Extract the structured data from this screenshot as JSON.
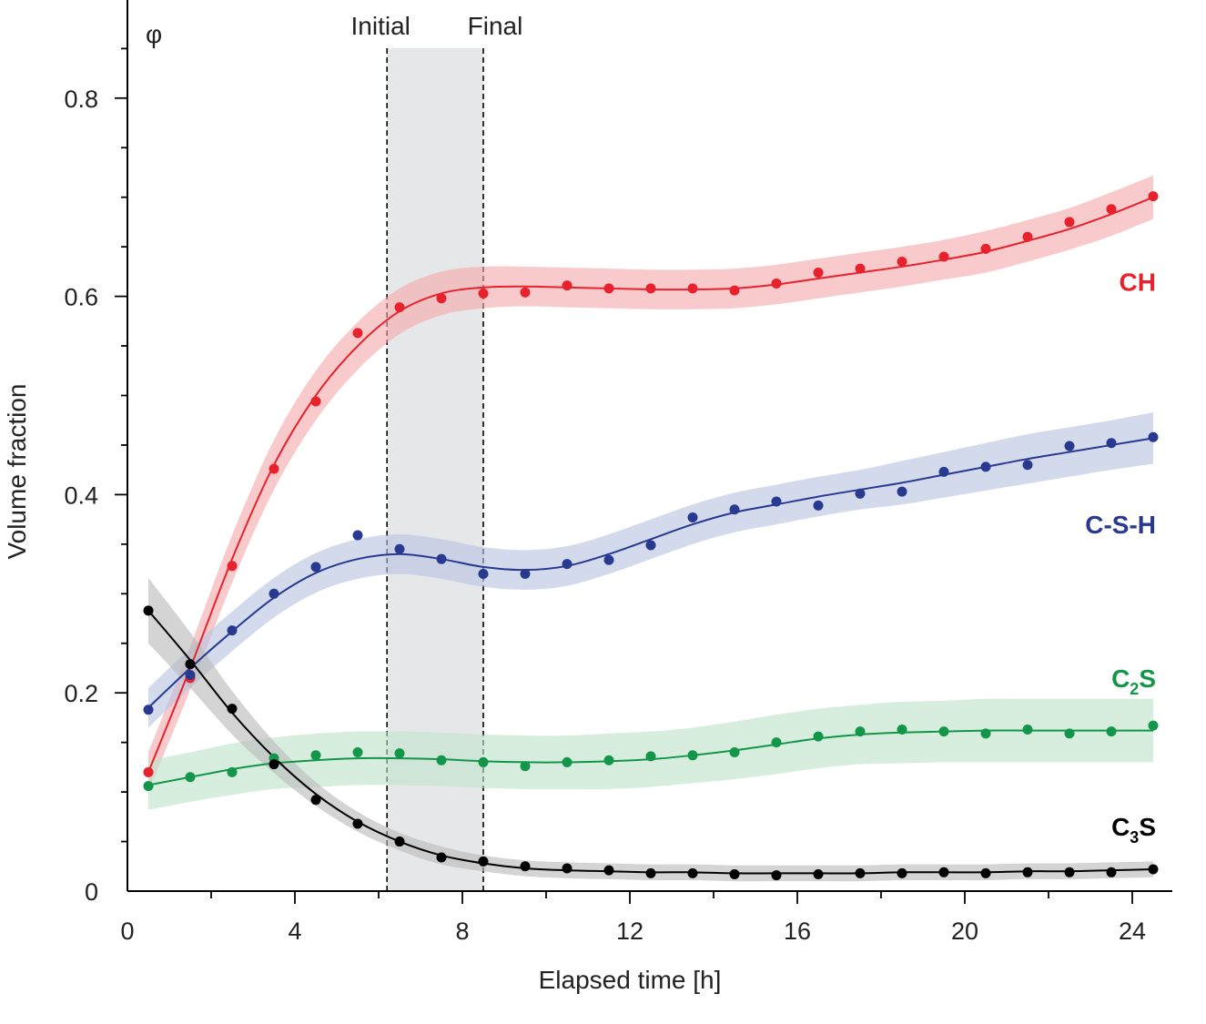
{
  "chart_data": {
    "type": "line",
    "title": "",
    "ylabel": "Volume fraction",
    "y_symbol": "φ",
    "xlabel": "Elapsed time [h]",
    "xlim": [
      0,
      25
    ],
    "ylim": [
      0,
      0.9
    ],
    "x_ticks": [
      0,
      4,
      8,
      12,
      16,
      20,
      24
    ],
    "y_ticks": [
      0,
      0.2,
      0.4,
      0.6,
      0.8
    ],
    "y_tick_labels": [
      "0",
      "0.2",
      "0.4",
      "0.6",
      "0.8"
    ],
    "grid": false,
    "legend": "labels placed at right end of each series",
    "setting_window": {
      "initial_label": "Initial",
      "final_label": "Final",
      "initial_x": 6.2,
      "final_x": 8.5
    },
    "x": [
      0.5,
      1.5,
      2.5,
      3.5,
      4.5,
      5.5,
      6.5,
      7.5,
      8.5,
      9.5,
      10.5,
      11.5,
      12.5,
      13.5,
      14.5,
      15.5,
      16.5,
      17.5,
      18.5,
      19.5,
      20.5,
      21.5,
      22.5,
      23.5,
      24.5
    ],
    "series": [
      {
        "name": "CH",
        "label_main": "CH",
        "label_sub": "",
        "label_y": 0.615,
        "color": "#e8222d",
        "band_color": "#f4a9ab",
        "values": [
          0.12,
          0.215,
          0.328,
          0.426,
          0.494,
          0.563,
          0.589,
          0.598,
          0.603,
          0.604,
          0.611,
          0.608,
          0.608,
          0.608,
          0.606,
          0.613,
          0.624,
          0.628,
          0.635,
          0.64,
          0.648,
          0.66,
          0.675,
          0.688,
          0.701
        ],
        "fit": [
          0.12,
          0.225,
          0.335,
          0.43,
          0.5,
          0.55,
          0.585,
          0.603,
          0.609,
          0.61,
          0.609,
          0.608,
          0.607,
          0.607,
          0.608,
          0.612,
          0.618,
          0.624,
          0.63,
          0.637,
          0.645,
          0.656,
          0.668,
          0.683,
          0.7
        ],
        "band": [
          0.02,
          0.022,
          0.024,
          0.025,
          0.025,
          0.024,
          0.023,
          0.022,
          0.021,
          0.02,
          0.02,
          0.02,
          0.02,
          0.02,
          0.02,
          0.02,
          0.02,
          0.02,
          0.02,
          0.02,
          0.021,
          0.021,
          0.021,
          0.022,
          0.022
        ]
      },
      {
        "name": "C-S-H",
        "label_main": "C-S-H",
        "label_sub": "",
        "label_y": 0.37,
        "color": "#283990",
        "band_color": "#b8c3e1",
        "values": [
          0.183,
          0.218,
          0.263,
          0.3,
          0.327,
          0.359,
          0.345,
          0.335,
          0.32,
          0.32,
          0.33,
          0.334,
          0.349,
          0.377,
          0.385,
          0.393,
          0.389,
          0.401,
          0.403,
          0.423,
          0.428,
          0.43,
          0.449,
          0.452,
          0.458
        ],
        "fit": [
          0.185,
          0.225,
          0.262,
          0.296,
          0.321,
          0.335,
          0.34,
          0.335,
          0.327,
          0.324,
          0.328,
          0.34,
          0.355,
          0.37,
          0.382,
          0.39,
          0.398,
          0.405,
          0.412,
          0.42,
          0.428,
          0.436,
          0.443,
          0.45,
          0.457
        ],
        "band": [
          0.02,
          0.02,
          0.02,
          0.02,
          0.02,
          0.02,
          0.02,
          0.02,
          0.02,
          0.02,
          0.02,
          0.02,
          0.02,
          0.02,
          0.02,
          0.02,
          0.02,
          0.02,
          0.022,
          0.023,
          0.024,
          0.025,
          0.025,
          0.025,
          0.026
        ]
      },
      {
        "name": "C₂S",
        "label_main": "C",
        "label_sub": "2",
        "label_tail": "S",
        "label_y": 0.215,
        "color": "#139649",
        "band_color": "#bfe3cb",
        "values": [
          0.106,
          0.115,
          0.12,
          0.134,
          0.137,
          0.14,
          0.139,
          0.132,
          0.13,
          0.126,
          0.13,
          0.132,
          0.136,
          0.137,
          0.14,
          0.15,
          0.156,
          0.161,
          0.163,
          0.161,
          0.159,
          0.163,
          0.159,
          0.161,
          0.167
        ],
        "fit": [
          0.107,
          0.115,
          0.123,
          0.129,
          0.132,
          0.134,
          0.134,
          0.133,
          0.131,
          0.13,
          0.13,
          0.131,
          0.133,
          0.137,
          0.142,
          0.148,
          0.154,
          0.158,
          0.16,
          0.161,
          0.162,
          0.162,
          0.162,
          0.162,
          0.162
        ],
        "band": [
          0.025,
          0.025,
          0.026,
          0.026,
          0.027,
          0.027,
          0.027,
          0.027,
          0.027,
          0.027,
          0.027,
          0.028,
          0.028,
          0.028,
          0.029,
          0.03,
          0.03,
          0.03,
          0.031,
          0.031,
          0.032,
          0.032,
          0.032,
          0.032,
          0.032
        ]
      },
      {
        "name": "C₃S",
        "label_main": "C",
        "label_sub": "3",
        "label_tail": "S",
        "label_y": 0.065,
        "color": "#000000",
        "band_color": "#b9b9b9",
        "values": [
          0.283,
          0.229,
          0.184,
          0.128,
          0.092,
          0.068,
          0.05,
          0.034,
          0.03,
          0.025,
          0.023,
          0.021,
          0.018,
          0.018,
          0.017,
          0.016,
          0.017,
          0.018,
          0.018,
          0.019,
          0.018,
          0.019,
          0.019,
          0.019,
          0.022
        ],
        "fit": [
          0.283,
          0.233,
          0.18,
          0.135,
          0.098,
          0.07,
          0.05,
          0.036,
          0.028,
          0.023,
          0.021,
          0.02,
          0.019,
          0.019,
          0.018,
          0.018,
          0.018,
          0.018,
          0.019,
          0.019,
          0.019,
          0.02,
          0.02,
          0.021,
          0.022
        ],
        "band": [
          0.033,
          0.028,
          0.022,
          0.016,
          0.012,
          0.01,
          0.009,
          0.009,
          0.008,
          0.008,
          0.008,
          0.008,
          0.008,
          0.008,
          0.008,
          0.008,
          0.008,
          0.008,
          0.008,
          0.008,
          0.008,
          0.008,
          0.008,
          0.008,
          0.008
        ]
      }
    ]
  }
}
